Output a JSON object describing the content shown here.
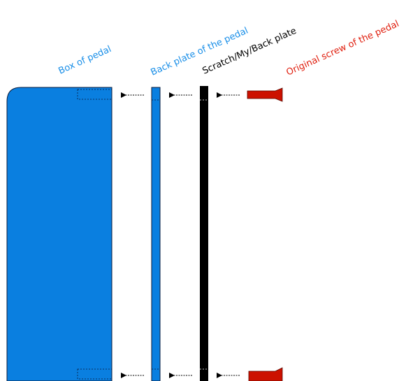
{
  "labels": {
    "box": "Box of pedal",
    "back_plate": "Back plate of the pedal",
    "scratch_plate": "Scratch/My/Back plate",
    "screw": "Original screw of the pedal"
  },
  "colors": {
    "blue_part": "#0a7fe0",
    "blue_text": "#1a8fe8",
    "black_part": "#000000",
    "red_part": "#cc1100",
    "red_text": "#e02010",
    "label_black": "#000000"
  }
}
